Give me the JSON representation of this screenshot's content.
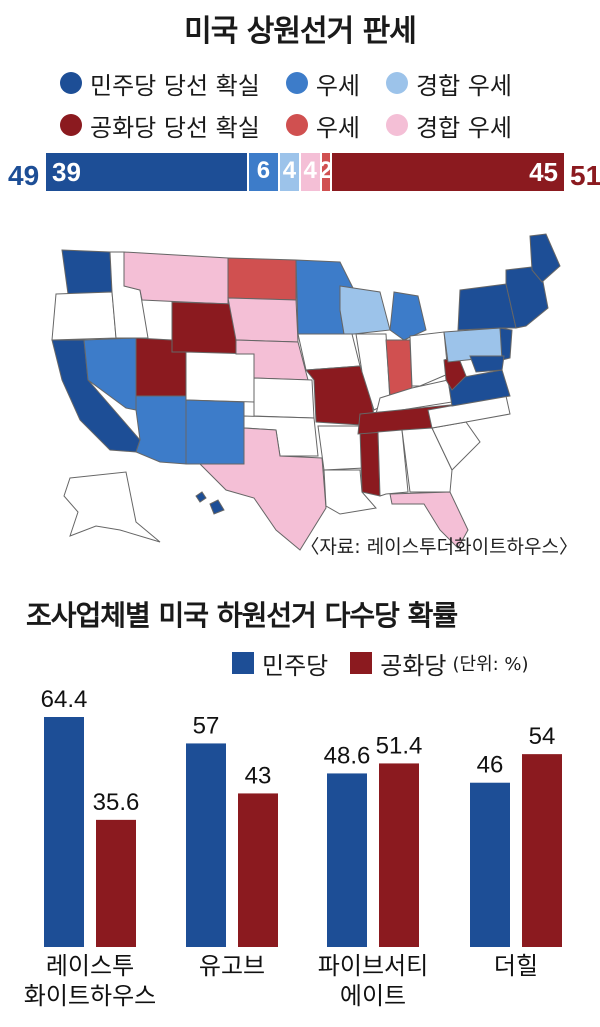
{
  "senate": {
    "title": "미국 상원선거 판세",
    "legend_dem": [
      {
        "label": "민주당 당선 확실",
        "color": "#1d4e96"
      },
      {
        "label": "우세",
        "color": "#3d7cc9"
      },
      {
        "label": "경합 우세",
        "color": "#9cc3ea"
      }
    ],
    "legend_rep": [
      {
        "label": "공화당 당선 확실",
        "color": "#8b1a1f"
      },
      {
        "label": "우세",
        "color": "#d05050"
      },
      {
        "label": "경합 우세",
        "color": "#f4bfd6"
      }
    ],
    "dem_total": "49",
    "rep_total": "51",
    "segments": [
      {
        "value": 39,
        "label": "39",
        "color": "#1d4e96"
      },
      {
        "value": 6,
        "label": "6",
        "color": "#3d7cc9"
      },
      {
        "value": 4,
        "label": "4",
        "color": "#9cc3ea"
      },
      {
        "value": 4,
        "label": "4",
        "color": "#f4bfd6"
      },
      {
        "value": 2,
        "label": "2",
        "color": "#d05050"
      },
      {
        "value": 45,
        "label": "45",
        "color": "#8b1a1f"
      }
    ],
    "source": "〈자료: 레이스투더화이트하우스〉"
  },
  "house": {
    "title": "조사업체별 미국 하원선거 다수당 확률",
    "legend": [
      {
        "label": "민주당",
        "color": "#1d4e96"
      },
      {
        "label": "공화당",
        "color": "#8b1a1f"
      }
    ],
    "unit": "(단위: %)"
  },
  "chart_data": {
    "type": "bar",
    "categories": [
      "레이스투\n화이트하우스",
      "유고브",
      "파이브서티\n에이트",
      "더힐"
    ],
    "series": [
      {
        "name": "민주당",
        "values": [
          64.4,
          57,
          48.6,
          46
        ],
        "labels": [
          "64.4",
          "57",
          "48.6",
          "46"
        ],
        "color": "#1d4e96"
      },
      {
        "name": "공화당",
        "values": [
          35.6,
          43,
          51.4,
          54
        ],
        "labels": [
          "35.6",
          "43",
          "51.4",
          "54"
        ],
        "color": "#8b1a1f"
      }
    ],
    "title": "조사업체별 미국 하원선거 다수당 확률",
    "ylabel": "(단위: %)",
    "ylim": [
      0,
      70
    ],
    "grid": false,
    "legend": "top-right"
  }
}
